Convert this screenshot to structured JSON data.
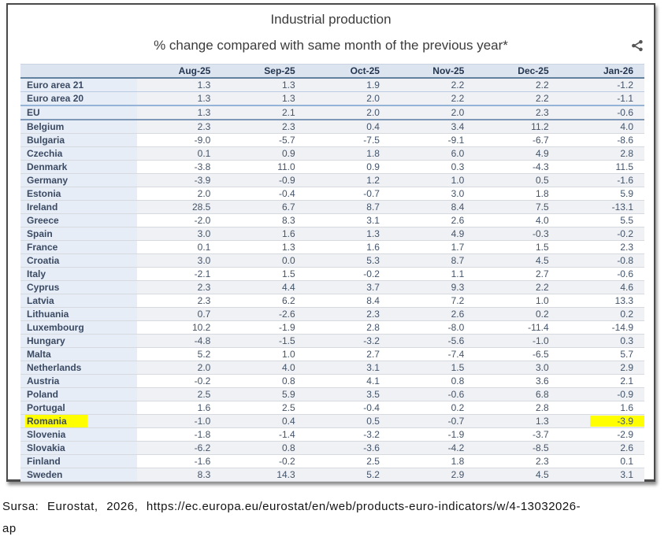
{
  "chart_data": {
    "type": "table",
    "title": "Industrial production",
    "subtitle": "% change compared with same month of the previous year*",
    "columns": [
      "",
      "Aug-25",
      "Sep-25",
      "Oct-25",
      "Nov-25",
      "Dec-25",
      "Jan-26"
    ],
    "rows": [
      {
        "name": "Euro area 21",
        "values": [
          "1.3",
          "1.3",
          "1.9",
          "2.2",
          "2.2",
          "-1.2"
        ]
      },
      {
        "name": "Euro area 20",
        "values": [
          "1.3",
          "1.3",
          "2.0",
          "2.2",
          "2.2",
          "-1.1"
        ]
      },
      {
        "name": "EU",
        "values": [
          "1.3",
          "2.1",
          "2.0",
          "2.0",
          "2.3",
          "-0.6"
        ]
      },
      {
        "name": "Belgium",
        "values": [
          "2.3",
          "2.3",
          "0.4",
          "3.4",
          "11.2",
          "4.0"
        ]
      },
      {
        "name": "Bulgaria",
        "values": [
          "-9.0",
          "-5.7",
          "-7.5",
          "-9.1",
          "-6.7",
          "-8.6"
        ]
      },
      {
        "name": "Czechia",
        "values": [
          "0.1",
          "0.9",
          "1.8",
          "6.0",
          "4.9",
          "2.8"
        ]
      },
      {
        "name": "Denmark",
        "values": [
          "-3.8",
          "11.0",
          "0.9",
          "0.3",
          "-4.3",
          "11.5"
        ]
      },
      {
        "name": "Germany",
        "values": [
          "-3.9",
          "-0.9",
          "1.2",
          "1.0",
          "0.5",
          "-1.6"
        ]
      },
      {
        "name": "Estonia",
        "values": [
          "2.0",
          "-0.4",
          "-0.7",
          "3.0",
          "1.8",
          "5.9"
        ]
      },
      {
        "name": "Ireland",
        "values": [
          "28.5",
          "6.7",
          "8.7",
          "8.4",
          "7.5",
          "-13.1"
        ]
      },
      {
        "name": "Greece",
        "values": [
          "-2.0",
          "8.3",
          "3.1",
          "2.6",
          "4.0",
          "5.5"
        ]
      },
      {
        "name": "Spain",
        "values": [
          "3.0",
          "1.6",
          "1.3",
          "4.9",
          "-0.3",
          "-0.2"
        ]
      },
      {
        "name": "France",
        "values": [
          "0.1",
          "1.3",
          "1.6",
          "1.7",
          "1.5",
          "2.3"
        ]
      },
      {
        "name": "Croatia",
        "values": [
          "3.0",
          "0.0",
          "5.3",
          "8.7",
          "4.5",
          "-0.8"
        ]
      },
      {
        "name": "Italy",
        "values": [
          "-2.1",
          "1.5",
          "-0.2",
          "1.1",
          "2.7",
          "-0.6"
        ]
      },
      {
        "name": "Cyprus",
        "values": [
          "2.3",
          "4.4",
          "3.7",
          "9.3",
          "2.2",
          "4.6"
        ]
      },
      {
        "name": "Latvia",
        "values": [
          "2.3",
          "6.2",
          "8.4",
          "7.2",
          "1.0",
          "13.3"
        ]
      },
      {
        "name": "Lithuania",
        "values": [
          "0.7",
          "-2.6",
          "2.3",
          "2.6",
          "0.2",
          "0.2"
        ]
      },
      {
        "name": "Luxembourg",
        "values": [
          "10.2",
          "-1.9",
          "2.8",
          "-8.0",
          "-11.4",
          "-14.9"
        ]
      },
      {
        "name": "Hungary",
        "values": [
          "-4.8",
          "-1.5",
          "-3.2",
          "-5.6",
          "-1.0",
          "0.3"
        ]
      },
      {
        "name": "Malta",
        "values": [
          "5.2",
          "1.0",
          "2.7",
          "-7.4",
          "-6.5",
          "5.7"
        ]
      },
      {
        "name": "Netherlands",
        "values": [
          "2.0",
          "4.0",
          "3.1",
          "1.5",
          "3.0",
          "2.9"
        ]
      },
      {
        "name": "Austria",
        "values": [
          "-0.2",
          "0.8",
          "4.1",
          "0.8",
          "3.6",
          "2.1"
        ]
      },
      {
        "name": "Poland",
        "values": [
          "2.5",
          "5.9",
          "3.5",
          "-0.6",
          "6.8",
          "-0.9"
        ]
      },
      {
        "name": "Portugal",
        "values": [
          "1.6",
          "2.5",
          "-0.4",
          "0.2",
          "2.8",
          "1.6"
        ]
      },
      {
        "name": "Romania",
        "values": [
          "-1.0",
          "0.4",
          "0.5",
          "-0.7",
          "1.3",
          "-3.9"
        ],
        "highlight_name": true,
        "highlight_values": [
          "Jan-26"
        ]
      },
      {
        "name": "Slovenia",
        "values": [
          "-1.8",
          "-1.4",
          "-3.2",
          "-1.9",
          "-3.7",
          "-2.9"
        ]
      },
      {
        "name": "Slovakia",
        "values": [
          "-6.2",
          "0.8",
          "-3.6",
          "-4.2",
          "-8.5",
          "2.6"
        ]
      },
      {
        "name": "Finland",
        "values": [
          "-1.6",
          "-0.2",
          "2.5",
          "1.8",
          "2.3",
          "0.1"
        ]
      },
      {
        "name": "Sweden",
        "values": [
          "8.3",
          "14.3",
          "5.2",
          "2.9",
          "4.5",
          "3.1"
        ]
      }
    ],
    "legend_position": "none",
    "grid": "row-separators"
  },
  "icons": {
    "share": "share-icon"
  },
  "colors": {
    "highlight": "#ffff00",
    "header_bg": "#dce4f0",
    "name_column_bg": "#e7edf7",
    "stripe_bg": "#eff1f4",
    "accent_border": "#95b3d7",
    "text": "#44546a"
  },
  "footer": {
    "line1": "Sursa: Eurostat, 2026, https://ec.europa.eu/eurostat/en/web/products-euro-indicators/w/4-13032026-",
    "line2": "ap"
  }
}
